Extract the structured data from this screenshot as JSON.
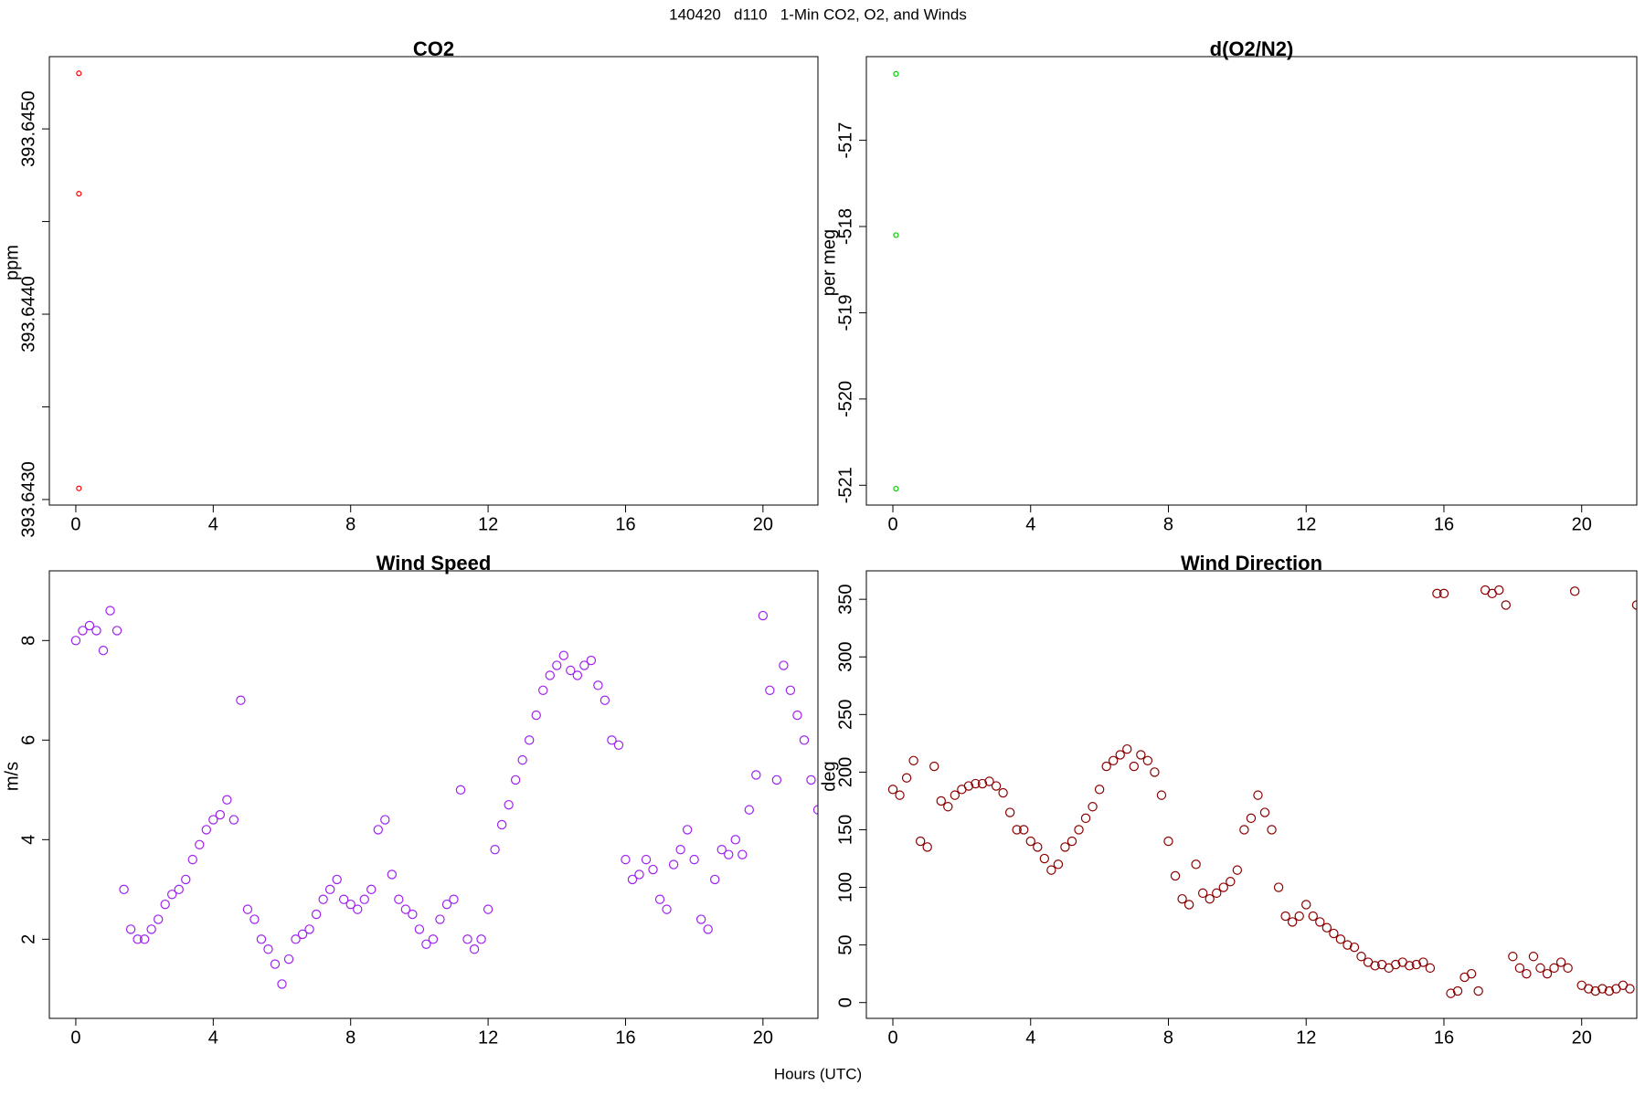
{
  "title": "140420   d110   1-Min CO2, O2, and Winds",
  "xlabel": "Hours (UTC)",
  "chart_data": [
    {
      "type": "scatter",
      "title": "CO2",
      "ylabel": "ppm",
      "color": "#ff0000",
      "x": [
        0.09,
        0.09,
        0.09
      ],
      "values": [
        393.6453,
        393.64465,
        393.64306
      ],
      "xlim": [
        -0.77,
        21.6
      ],
      "xticks": [
        0,
        4,
        8,
        12,
        16,
        20
      ],
      "ylim": [
        393.64297,
        393.64539
      ],
      "yticks": [
        {
          "value": 393.643,
          "label": "393.6430"
        },
        {
          "value": 393.644,
          "label": "393.6440"
        },
        {
          "value": 393.645,
          "label": "393.6450"
        }
      ],
      "yminorticks": [
        393.6435,
        393.6445
      ]
    },
    {
      "type": "scatter",
      "title": "d(O2/N2)",
      "ylabel": "per meg",
      "color": "#00cc00",
      "x": [
        0.09,
        0.09,
        0.09
      ],
      "values": [
        -516.23,
        -518.1,
        -521.04
      ],
      "xlim": [
        -0.77,
        21.6
      ],
      "xticks": [
        0,
        4,
        8,
        12,
        16,
        20
      ],
      "ylim": [
        -521.23,
        -516.03
      ],
      "yticks": [
        -521,
        -520,
        -519,
        -518,
        -517
      ]
    },
    {
      "type": "scatter",
      "title": "Wind Speed",
      "ylabel": "m/s",
      "color": "#a020f0",
      "x": [
        0,
        0.2,
        0.4,
        0.6,
        0.8,
        1,
        1.2,
        1.4,
        1.6,
        1.8,
        2,
        2.2,
        2.4,
        2.6,
        2.8,
        3,
        3.2,
        3.4,
        3.6,
        3.8,
        4,
        4.2,
        4.4,
        4.6,
        4.8,
        5,
        5.2,
        5.4,
        5.6,
        5.8,
        6,
        6.2,
        6.4,
        6.6,
        6.8,
        7,
        7.2,
        7.4,
        7.6,
        7.8,
        8,
        8.2,
        8.4,
        8.6,
        8.8,
        9,
        9.2,
        9.4,
        9.6,
        9.8,
        10,
        10.2,
        10.4,
        10.6,
        10.8,
        11,
        11.2,
        11.4,
        11.6,
        11.8,
        12,
        12.2,
        12.4,
        12.6,
        12.8,
        13,
        13.2,
        13.4,
        13.6,
        13.8,
        14,
        14.2,
        14.4,
        14.6,
        14.8,
        15,
        15.2,
        15.4,
        15.6,
        15.8,
        16,
        16.2,
        16.4,
        16.6,
        16.8,
        17,
        17.2,
        17.4,
        17.6,
        17.8,
        18,
        18.2,
        18.4,
        18.6,
        18.8,
        19,
        19.2,
        19.4,
        19.6,
        19.8,
        20,
        20.2,
        20.4,
        20.6,
        20.8,
        21,
        21.2,
        21.4,
        21.6
      ],
      "values": [
        8.0,
        8.2,
        8.3,
        8.2,
        7.8,
        8.6,
        8.2,
        3.0,
        2.2,
        2.0,
        2.0,
        2.2,
        2.4,
        2.7,
        2.9,
        3.0,
        3.2,
        3.6,
        3.9,
        4.2,
        4.4,
        4.5,
        4.8,
        4.4,
        6.8,
        2.6,
        2.4,
        2.0,
        1.8,
        1.5,
        1.1,
        1.6,
        2.0,
        2.1,
        2.2,
        2.5,
        2.8,
        3.0,
        3.2,
        2.8,
        2.7,
        2.6,
        2.8,
        3.0,
        4.2,
        4.4,
        3.3,
        2.8,
        2.6,
        2.5,
        2.2,
        1.9,
        2.0,
        2.4,
        2.7,
        2.8,
        5.0,
        2.0,
        1.8,
        2.0,
        2.6,
        3.8,
        4.3,
        4.7,
        5.2,
        5.6,
        6.0,
        6.5,
        7.0,
        7.3,
        7.5,
        7.7,
        7.4,
        7.3,
        7.5,
        7.6,
        7.1,
        6.8,
        6.0,
        5.9,
        3.6,
        3.2,
        3.3,
        3.6,
        3.4,
        2.8,
        2.6,
        3.5,
        3.8,
        4.2,
        3.6,
        2.4,
        2.2,
        3.2,
        3.8,
        3.7,
        4.0,
        3.7,
        4.6,
        5.3,
        8.5,
        7.0,
        5.2,
        7.5,
        7.0,
        6.5,
        6.0,
        5.2,
        4.6
      ],
      "xlim": [
        -0.77,
        21.6
      ],
      "xticks": [
        0,
        4,
        8,
        12,
        16,
        20
      ],
      "ylim": [
        0.41,
        9.4
      ],
      "yticks": [
        2,
        4,
        6,
        8
      ]
    },
    {
      "type": "scatter",
      "title": "Wind Direction",
      "ylabel": "deg",
      "color": "#8b0000",
      "x": [
        0,
        0.2,
        0.4,
        0.6,
        0.8,
        1,
        1.2,
        1.4,
        1.6,
        1.8,
        2,
        2.2,
        2.4,
        2.6,
        2.8,
        3,
        3.2,
        3.4,
        3.6,
        3.8,
        4,
        4.2,
        4.4,
        4.6,
        4.8,
        5,
        5.2,
        5.4,
        5.6,
        5.8,
        6,
        6.2,
        6.4,
        6.6,
        6.8,
        7,
        7.2,
        7.4,
        7.6,
        7.8,
        8,
        8.2,
        8.4,
        8.6,
        8.8,
        9,
        9.2,
        9.4,
        9.6,
        9.8,
        10,
        10.2,
        10.4,
        10.6,
        10.8,
        11,
        11.2,
        11.4,
        11.6,
        11.8,
        12,
        12.2,
        12.4,
        12.6,
        12.8,
        13,
        13.2,
        13.4,
        13.6,
        13.8,
        14,
        14.2,
        14.4,
        14.6,
        14.8,
        15,
        15.2,
        15.4,
        15.6,
        15.8,
        16,
        16.2,
        16.4,
        16.6,
        16.8,
        17,
        17.2,
        17.4,
        17.6,
        17.8,
        18,
        18.2,
        18.4,
        18.6,
        18.8,
        19,
        19.2,
        19.4,
        19.6,
        19.8,
        20,
        20.2,
        20.4,
        20.6,
        20.8,
        21,
        21.2,
        21.4,
        21.6
      ],
      "values": [
        185,
        180,
        195,
        210,
        140,
        135,
        205,
        175,
        170,
        180,
        185,
        188,
        190,
        190,
        192,
        188,
        182,
        165,
        150,
        150,
        140,
        135,
        125,
        115,
        120,
        135,
        140,
        150,
        160,
        170,
        185,
        205,
        210,
        215,
        220,
        205,
        215,
        210,
        200,
        180,
        140,
        110,
        90,
        85,
        120,
        95,
        90,
        95,
        100,
        105,
        115,
        150,
        160,
        180,
        165,
        150,
        100,
        75,
        70,
        75,
        85,
        75,
        70,
        65,
        60,
        55,
        50,
        48,
        40,
        35,
        32,
        33,
        30,
        33,
        35,
        32,
        33,
        35,
        30,
        355,
        355,
        8,
        10,
        22,
        25,
        10,
        358,
        355,
        358,
        345,
        40,
        30,
        25,
        40,
        30,
        25,
        30,
        35,
        30,
        357,
        15,
        12,
        10,
        12,
        10,
        12,
        15,
        12,
        345
      ],
      "xlim": [
        -0.77,
        21.6
      ],
      "xticks": [
        0,
        4,
        8,
        12,
        16,
        20
      ],
      "ylim": [
        -13.7,
        374.7
      ],
      "yticks": [
        0,
        50,
        100,
        150,
        200,
        250,
        300,
        350
      ]
    }
  ]
}
